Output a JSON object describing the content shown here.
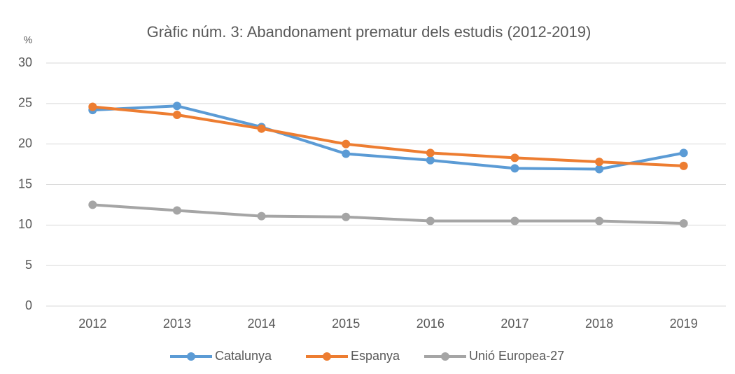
{
  "chart_data": {
    "type": "line",
    "title": "Gràfic núm. 3: Abandonament prematur dels estudis (2012-2019)",
    "y_label": "%",
    "categories": [
      "2012",
      "2013",
      "2014",
      "2015",
      "2016",
      "2017",
      "2018",
      "2019"
    ],
    "series": [
      {
        "name": "Catalunya",
        "color": "#5b9bd5",
        "values": [
          24.2,
          24.7,
          22.1,
          18.8,
          18.0,
          17.0,
          16.9,
          18.9
        ]
      },
      {
        "name": "Espanya",
        "color": "#ed7d31",
        "values": [
          24.6,
          23.6,
          21.9,
          20.0,
          18.9,
          18.3,
          17.8,
          17.3
        ]
      },
      {
        "name": "Unió Europea-27",
        "color": "#a5a5a5",
        "values": [
          12.5,
          11.8,
          11.1,
          11.0,
          10.5,
          10.5,
          10.5,
          10.2
        ]
      }
    ],
    "ylim": [
      0,
      30
    ],
    "yticks": [
      0,
      5,
      10,
      15,
      20,
      25,
      30
    ],
    "grid": true
  }
}
